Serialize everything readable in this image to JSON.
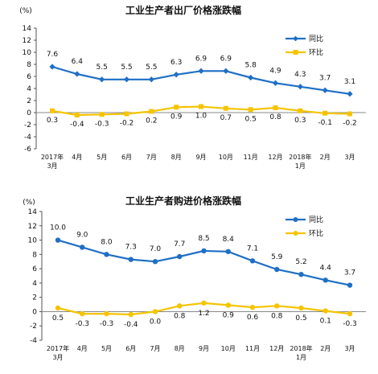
{
  "chart_data": [
    {
      "type": "line",
      "title": "工业生产者出厂价格涨跌幅",
      "unit": "(%)",
      "categories": [
        [
          "2017年",
          "3月"
        ],
        [
          "4月"
        ],
        [
          "5月"
        ],
        [
          "6月"
        ],
        [
          "7月"
        ],
        [
          "8月"
        ],
        [
          "9月"
        ],
        [
          "10月"
        ],
        [
          "11月"
        ],
        [
          "12月"
        ],
        [
          "2018年",
          "1月"
        ],
        [
          "2月"
        ],
        [
          "3月"
        ]
      ],
      "ylim": [
        -6,
        14
      ],
      "yticks": [
        -6,
        -4,
        -2,
        0,
        2,
        4,
        6,
        8,
        10,
        12,
        14
      ],
      "grid": false,
      "legend": "top-right",
      "series": [
        {
          "name": "同比",
          "color": "#1f6fc5",
          "marker": "diamond",
          "values": [
            7.6,
            6.4,
            5.5,
            5.5,
            5.5,
            6.3,
            6.9,
            6.9,
            5.8,
            4.9,
            4.3,
            3.7,
            3.1
          ],
          "labels": [
            "7.6",
            "6.4",
            "5.5",
            "5.5",
            "5.5",
            "6.3",
            "6.9",
            "6.9",
            "5.8",
            "4.9",
            "4.3",
            "3.7",
            "3.1"
          ]
        },
        {
          "name": "环比",
          "color": "#f5c400",
          "marker": "square",
          "values": [
            0.3,
            -0.4,
            -0.3,
            -0.2,
            0.2,
            0.9,
            1.0,
            0.7,
            0.5,
            0.8,
            0.3,
            -0.1,
            -0.2
          ],
          "labels": [
            "0.3",
            "-0.4",
            "-0.3",
            "-0.2",
            "0.2",
            "0.9",
            "1.0",
            "0.7",
            "0.5",
            "0.8",
            "0.3",
            "-0.1",
            "-0.2"
          ]
        }
      ]
    },
    {
      "type": "line",
      "title": "工业生产者购进价格涨跌幅",
      "unit": "(%)",
      "categories": [
        [
          "2017年",
          "3月"
        ],
        [
          "4月"
        ],
        [
          "5月"
        ],
        [
          "6月"
        ],
        [
          "7月"
        ],
        [
          "8月"
        ],
        [
          "9月"
        ],
        [
          "10月"
        ],
        [
          "11月"
        ],
        [
          "12月"
        ],
        [
          "2018年",
          "1月"
        ],
        [
          "2月"
        ],
        [
          "3月"
        ]
      ],
      "ylim": [
        -4,
        14
      ],
      "yticks": [
        -4,
        -2,
        0,
        2,
        4,
        6,
        8,
        10,
        12,
        14
      ],
      "grid": false,
      "legend": "top-right",
      "series": [
        {
          "name": "同比",
          "color": "#1f6fc5",
          "marker": "circle",
          "values": [
            10.0,
            9.0,
            8.0,
            7.3,
            7.0,
            7.7,
            8.5,
            8.4,
            7.1,
            5.9,
            5.2,
            4.4,
            3.7
          ],
          "labels": [
            "10.0",
            "9.0",
            "8.0",
            "7.3",
            "7.0",
            "7.7",
            "8.5",
            "8.4",
            "7.1",
            "5.9",
            "5.2",
            "4.4",
            "3.7"
          ]
        },
        {
          "name": "环比",
          "color": "#f5c400",
          "marker": "circle",
          "values": [
            0.5,
            -0.3,
            -0.3,
            -0.4,
            0.0,
            0.8,
            1.2,
            0.9,
            0.6,
            0.8,
            0.5,
            0.1,
            -0.3
          ],
          "labels": [
            "0.5",
            "-0.3",
            "-0.3",
            "-0.4",
            "0.0",
            "0.8",
            "1.2",
            "0.9",
            "0.6",
            "0.8",
            "0.5",
            "0.1",
            "-0.3"
          ]
        }
      ]
    }
  ]
}
